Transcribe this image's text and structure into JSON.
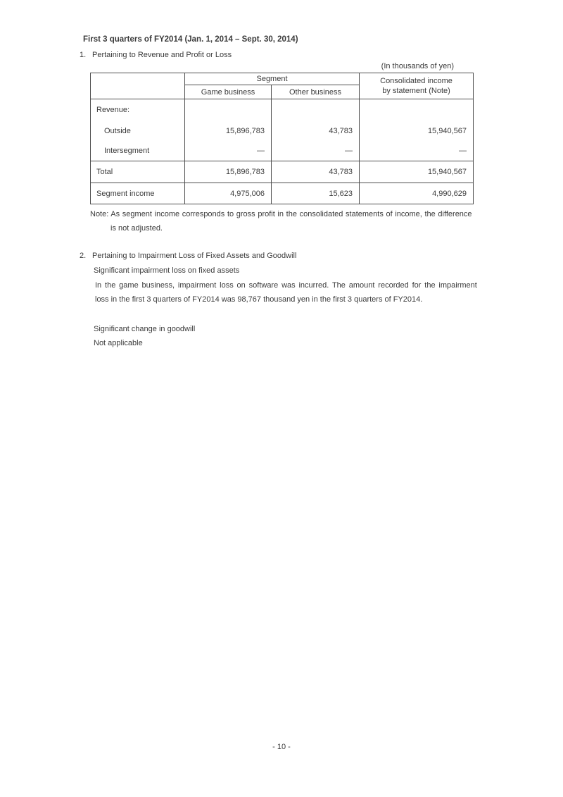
{
  "header": {
    "title": "First 3 quarters of FY2014 (Jan. 1, 2014 – Sept. 30, 2014)"
  },
  "section1": {
    "number": "1.",
    "heading": "Pertaining to Revenue and Profit or Loss",
    "units_label": "(In thousands of yen)",
    "table": {
      "segment_group_header": "Segment",
      "columns": {
        "game": "Game business",
        "other": "Other business",
        "consolidated_line1": "Consolidated income",
        "consolidated_line2": "by statement (Note)"
      },
      "rows": {
        "revenue_header": "Revenue:",
        "outside": {
          "label": "Outside",
          "game": "15,896,783",
          "other": "43,783",
          "consolidated": "15,940,567"
        },
        "intersegment": {
          "label": "Intersegment",
          "game": "—",
          "other": "—",
          "consolidated": "—"
        },
        "total": {
          "label": "Total",
          "game": "15,896,783",
          "other": "43,783",
          "consolidated": "15,940,567"
        },
        "segment_income": {
          "label": "Segment income",
          "game": "4,975,006",
          "other": "15,623",
          "consolidated": "4,990,629"
        }
      }
    },
    "note": {
      "label": "Note:",
      "line1": "As segment income corresponds to gross profit in the consolidated statements of income, the difference",
      "line2": "is not adjusted."
    }
  },
  "section2": {
    "number": "2.",
    "heading": "Pertaining to Impairment Loss of Fixed Assets and Goodwill",
    "impairment": {
      "subheading": "Significant impairment loss on fixed assets",
      "para_line1": "In the game business, impairment loss on software was incurred. The amount recorded for the impairment",
      "para_line2": "loss in the first 3 quarters of FY2014 was 98,767 thousand yen in the first 3 quarters of FY2014."
    },
    "goodwill": {
      "subheading": "Significant change in goodwill",
      "body": "Not applicable"
    }
  },
  "page": {
    "footer": "- 10 -"
  }
}
